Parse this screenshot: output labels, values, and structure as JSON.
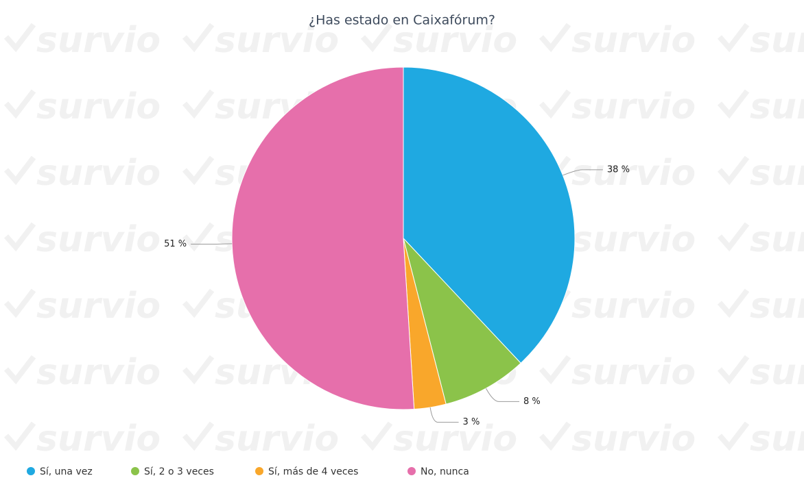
{
  "watermark": "survio",
  "chart_data": {
    "type": "pie",
    "title": "¿Has estado en Caixafórum?",
    "categories": [
      "Sí, una vez",
      "Sí, 2 o 3 veces",
      "Sí, más de 4 veces",
      "No, nunca"
    ],
    "values": [
      38,
      8,
      3,
      51
    ],
    "value_labels": [
      "38 %",
      "8 %",
      "3 %",
      "51 %"
    ],
    "colors": [
      "#1fa9e1",
      "#8bc34a",
      "#f9a72b",
      "#e66fab"
    ],
    "legend": "bottom"
  }
}
